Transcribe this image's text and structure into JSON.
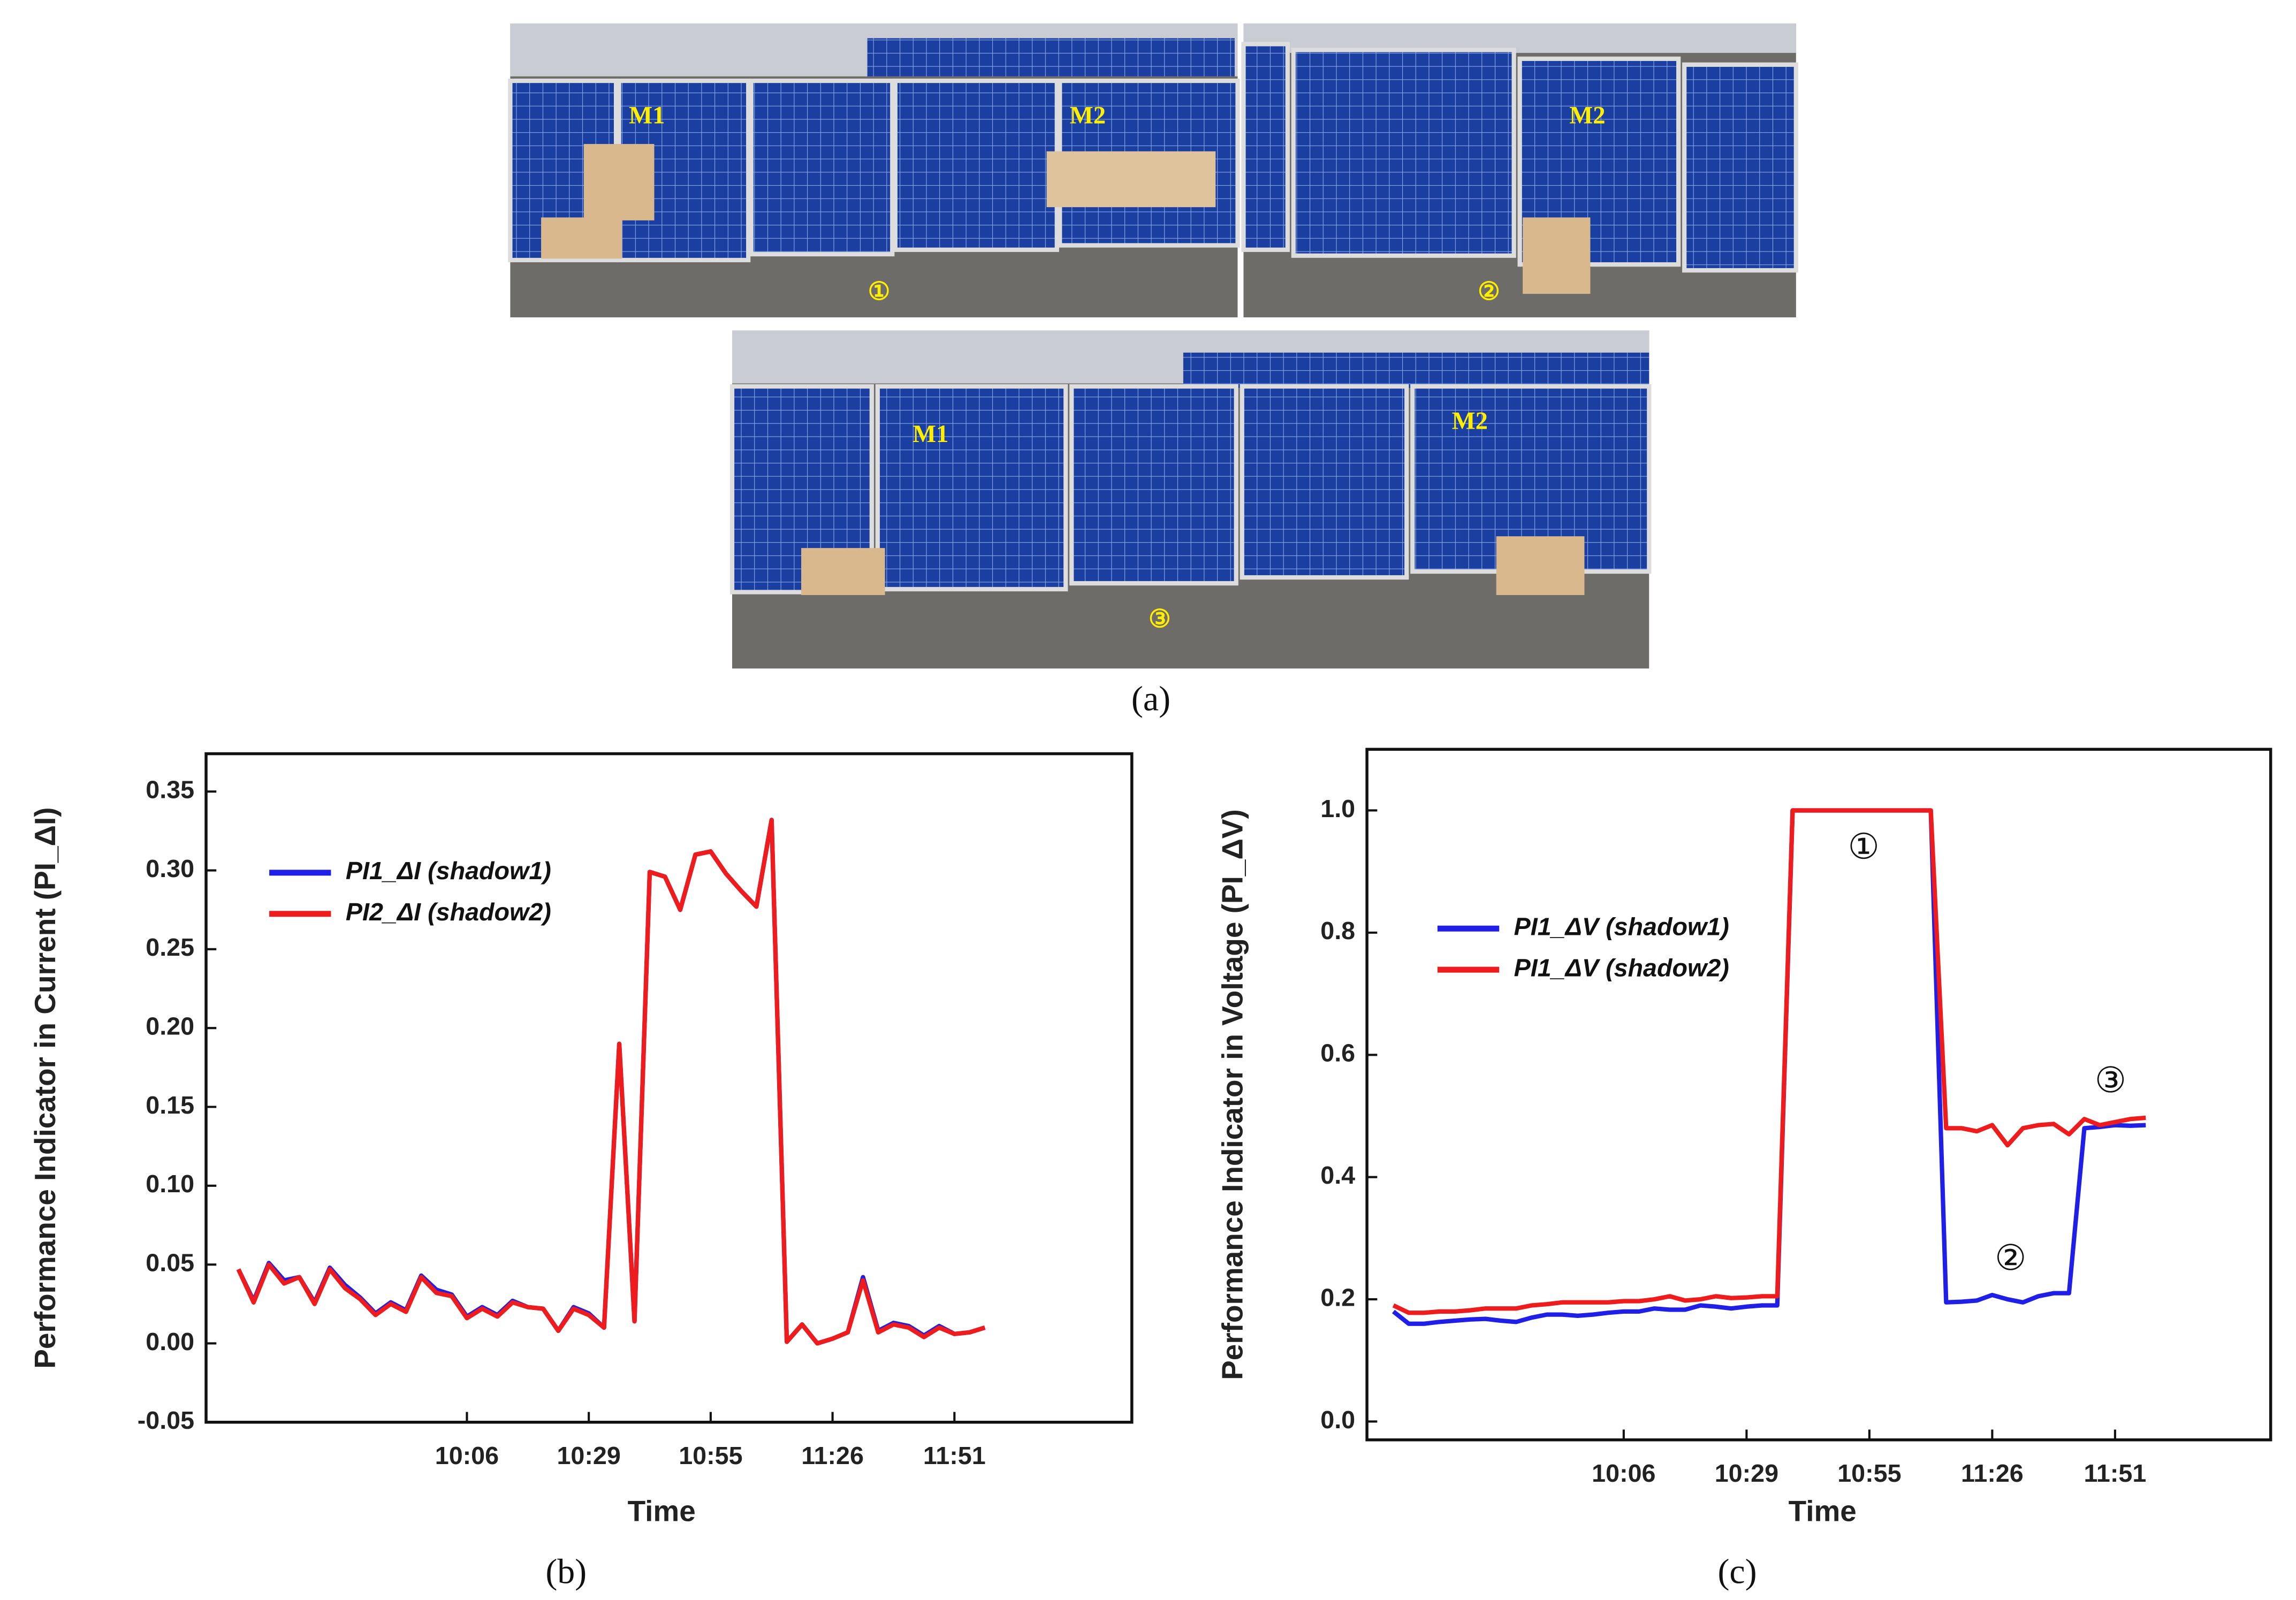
{
  "photos": {
    "labels": [
      "M1",
      "M2",
      "①",
      "M2",
      "②",
      "M1",
      "M2",
      "③"
    ],
    "caption": "(a)"
  },
  "chart_data": [
    {
      "type": "line",
      "caption": "(b)",
      "x_label": "Time",
      "y_label": "Performance Indicator in Current (PI_ΔI)",
      "categories": [
        null,
        null,
        null,
        null,
        null,
        null,
        null,
        null,
        null,
        null,
        null,
        null,
        null,
        null,
        null,
        "10:06",
        null,
        null,
        null,
        null,
        null,
        null,
        null,
        "10:29",
        null,
        null,
        null,
        null,
        null,
        null,
        null,
        "10:55",
        null,
        null,
        null,
        null,
        null,
        null,
        null,
        "11:26",
        null,
        null,
        null,
        null,
        null,
        null,
        null,
        "11:51",
        null,
        null
      ],
      "ylim": [
        -0.05,
        0.374
      ],
      "yticks": [
        -0.05,
        {
          "value": 0,
          "label": "0.00"
        },
        0.05,
        {
          "value": 0.1,
          "label": "0.10"
        },
        0.15,
        {
          "value": 0.2,
          "label": "0.20"
        },
        0.25,
        {
          "value": 0.3,
          "label": "0.30"
        },
        0.35
      ],
      "grid": false,
      "legend": "upper left",
      "series": [
        {
          "name": "PI1_ΔI (shadow1)",
          "color": "#1f1fe8",
          "values": [
            0.047,
            0.027,
            0.051,
            0.04,
            0.042,
            0.026,
            0.048,
            0.037,
            0.029,
            0.019,
            0.026,
            0.021,
            0.043,
            0.034,
            0.031,
            0.017,
            0.023,
            0.018,
            0.027,
            0.023,
            0.022,
            0.008,
            0.023,
            0.019,
            0.01,
            0.19,
            0.014,
            0.299,
            0.296,
            0.275,
            0.31,
            0.312,
            0.298,
            0.287,
            0.277,
            0.332,
            0.001,
            0.012,
            0.0,
            0.003,
            0.007,
            0.042,
            0.008,
            0.013,
            0.011,
            0.005,
            0.011,
            0.006,
            0.007,
            0.01
          ]
        },
        {
          "name": "PI2_ΔI (shadow2)",
          "color": "#ee1c1c",
          "values": [
            0.047,
            0.026,
            0.05,
            0.038,
            0.042,
            0.025,
            0.047,
            0.035,
            0.028,
            0.018,
            0.025,
            0.02,
            0.042,
            0.032,
            0.03,
            0.016,
            0.022,
            0.017,
            0.026,
            0.023,
            0.022,
            0.008,
            0.022,
            0.018,
            0.01,
            0.19,
            0.014,
            0.299,
            0.296,
            0.275,
            0.31,
            0.312,
            0.298,
            0.287,
            0.277,
            0.332,
            0.001,
            0.012,
            0.0,
            0.003,
            0.007,
            0.04,
            0.007,
            0.012,
            0.01,
            0.004,
            0.01,
            0.006,
            0.007,
            0.01
          ]
        }
      ]
    },
    {
      "type": "line",
      "caption": "(c)",
      "x_label": "Time",
      "y_label": "Performance Indicator in Voltage (PI_ΔV)",
      "categories": [
        null,
        null,
        null,
        null,
        null,
        null,
        null,
        null,
        null,
        null,
        null,
        null,
        null,
        null,
        null,
        "10:06",
        null,
        null,
        null,
        null,
        null,
        null,
        null,
        "10:29",
        null,
        null,
        null,
        null,
        null,
        null,
        null,
        "10:55",
        null,
        null,
        null,
        null,
        null,
        null,
        null,
        "11:26",
        null,
        null,
        null,
        null,
        null,
        null,
        null,
        "11:51",
        null,
        null
      ],
      "ylim": [
        -0.03,
        1.1
      ],
      "yticks": [
        {
          "value": 0,
          "label": "0.0"
        },
        0.2,
        0.4,
        0.6,
        0.8,
        {
          "value": 1,
          "label": "1.0"
        }
      ],
      "grid": false,
      "legend": "center left",
      "annotations": [
        "①",
        "②",
        "③"
      ],
      "series": [
        {
          "name": "PI1_ΔV (shadow1)",
          "color": "#1f1fe8",
          "values": [
            0.18,
            0.16,
            0.16,
            0.163,
            0.165,
            0.167,
            0.168,
            0.165,
            0.163,
            0.17,
            0.175,
            0.175,
            0.173,
            0.175,
            0.178,
            0.18,
            0.18,
            0.185,
            0.183,
            0.183,
            0.19,
            0.188,
            0.185,
            0.188,
            0.19,
            0.19,
            1.0,
            1.0,
            1.0,
            1.0,
            1.0,
            1.0,
            1.0,
            1.0,
            1.0,
            1.0,
            0.195,
            0.196,
            0.198,
            0.207,
            0.2,
            0.195,
            0.205,
            0.21,
            0.21,
            0.48,
            0.482,
            0.485,
            0.484,
            0.485
          ]
        },
        {
          "name": "PI1_ΔV (shadow2)",
          "color": "#ee1c1c",
          "values": [
            0.19,
            0.178,
            0.178,
            0.18,
            0.18,
            0.182,
            0.185,
            0.185,
            0.185,
            0.19,
            0.192,
            0.195,
            0.195,
            0.195,
            0.195,
            0.197,
            0.197,
            0.2,
            0.205,
            0.198,
            0.2,
            0.205,
            0.202,
            0.203,
            0.205,
            0.205,
            1.0,
            1.0,
            1.0,
            1.0,
            1.0,
            1.0,
            1.0,
            1.0,
            1.0,
            1.0,
            0.48,
            0.48,
            0.475,
            0.485,
            0.452,
            0.48,
            0.485,
            0.487,
            0.47,
            0.495,
            0.485,
            0.49,
            0.495,
            0.497
          ]
        }
      ]
    }
  ]
}
